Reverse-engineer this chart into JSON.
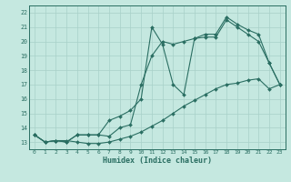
{
  "xlabel": "Humidex (Indice chaleur)",
  "bg_color": "#c5e8e0",
  "grid_color": "#a8d0c8",
  "line_color": "#2a6e62",
  "xlim": [
    -0.5,
    23.5
  ],
  "ylim": [
    12.5,
    22.5
  ],
  "yticks": [
    13,
    14,
    15,
    16,
    17,
    18,
    19,
    20,
    21,
    22
  ],
  "xticks": [
    0,
    1,
    2,
    3,
    4,
    5,
    6,
    7,
    8,
    9,
    10,
    11,
    12,
    13,
    14,
    15,
    16,
    17,
    18,
    19,
    20,
    21,
    22,
    23
  ],
  "line1_x": [
    0,
    1,
    2,
    3,
    4,
    5,
    6,
    7,
    8,
    9,
    10,
    11,
    12,
    13,
    14,
    15,
    16,
    17,
    18,
    19,
    20,
    21,
    22,
    23
  ],
  "line1_y": [
    13.5,
    13.0,
    13.1,
    13.1,
    13.0,
    12.9,
    12.9,
    13.0,
    13.2,
    13.4,
    13.7,
    14.1,
    14.5,
    15.0,
    15.5,
    15.9,
    16.3,
    16.7,
    17.0,
    17.1,
    17.3,
    17.4,
    16.7,
    17.0
  ],
  "line2_x": [
    0,
    1,
    2,
    3,
    4,
    5,
    6,
    7,
    8,
    9,
    10,
    11,
    12,
    13,
    14,
    15,
    16,
    17,
    18,
    19,
    20,
    21,
    22,
    23
  ],
  "line2_y": [
    13.5,
    13.0,
    13.1,
    13.0,
    13.5,
    13.5,
    13.5,
    13.4,
    14.0,
    14.2,
    17.0,
    19.0,
    20.0,
    19.8,
    20.0,
    20.2,
    20.3,
    20.3,
    21.5,
    21.0,
    20.5,
    20.0,
    18.5,
    17.0
  ],
  "line3_x": [
    0,
    1,
    2,
    3,
    4,
    5,
    6,
    7,
    8,
    9,
    10,
    11,
    12,
    13,
    14,
    15,
    16,
    17,
    18,
    19,
    20,
    21,
    22,
    23
  ],
  "line3_y": [
    13.5,
    13.0,
    13.1,
    13.0,
    13.5,
    13.5,
    13.5,
    14.5,
    14.8,
    15.2,
    16.0,
    21.0,
    19.8,
    17.0,
    16.3,
    20.2,
    20.5,
    20.5,
    21.7,
    21.2,
    20.8,
    20.5,
    18.5,
    17.0
  ]
}
